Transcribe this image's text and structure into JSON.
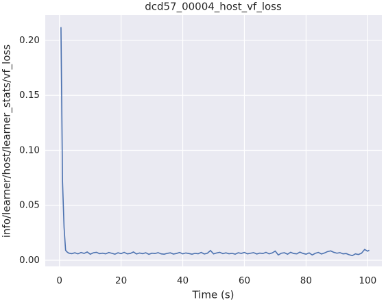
{
  "chart_data": {
    "type": "line",
    "title": "dcd57_00004_host_vf_loss",
    "x_label": "Time (s)",
    "y_label": "info/learner/host/learner_stats/vf_loss",
    "x": [
      0.5,
      1,
      1.5,
      2,
      2.5,
      3,
      4,
      5,
      6,
      7,
      8,
      9,
      10,
      11,
      12,
      13,
      14,
      15,
      16,
      17,
      18,
      19,
      20,
      21,
      22,
      23,
      24,
      25,
      26,
      27,
      28,
      29,
      30,
      31,
      32,
      33,
      34,
      35,
      36,
      37,
      38,
      39,
      40,
      41,
      42,
      43,
      44,
      45,
      46,
      47,
      48,
      49,
      50,
      51,
      52,
      53,
      54,
      55,
      56,
      57,
      58,
      59,
      60,
      61,
      62,
      63,
      64,
      65,
      66,
      67,
      68,
      69,
      70,
      71,
      72,
      73,
      74,
      75,
      76,
      77,
      78,
      79,
      80,
      81,
      82,
      83,
      84,
      85,
      86,
      87,
      88,
      89,
      90,
      91,
      92,
      93,
      94,
      95,
      96,
      97,
      98,
      99,
      100,
      100.5
    ],
    "series": [
      {
        "name": "vf_loss",
        "color": "#4c72b0",
        "values": [
          0.212,
          0.072,
          0.03,
          0.009,
          0.0075,
          0.0065,
          0.006,
          0.0068,
          0.0058,
          0.007,
          0.0062,
          0.0075,
          0.0055,
          0.0068,
          0.0072,
          0.006,
          0.0064,
          0.0058,
          0.007,
          0.0063,
          0.0055,
          0.0068,
          0.006,
          0.0072,
          0.0058,
          0.0062,
          0.0075,
          0.0057,
          0.0066,
          0.006,
          0.0068,
          0.0054,
          0.0064,
          0.0061,
          0.0069,
          0.0058,
          0.0055,
          0.0063,
          0.0067,
          0.0056,
          0.0062,
          0.007,
          0.0058,
          0.0066,
          0.0061,
          0.0055,
          0.0063,
          0.0059,
          0.0071,
          0.0057,
          0.0064,
          0.0088,
          0.0058,
          0.0066,
          0.0072,
          0.006,
          0.0067,
          0.0059,
          0.0063,
          0.0055,
          0.0068,
          0.0062,
          0.0071,
          0.0058,
          0.0064,
          0.0069,
          0.0057,
          0.0065,
          0.0061,
          0.0072,
          0.0058,
          0.0066,
          0.0083,
          0.0048,
          0.0064,
          0.0068,
          0.0055,
          0.0072,
          0.0061,
          0.0058,
          0.0074,
          0.0062,
          0.0055,
          0.0067,
          0.0048,
          0.0063,
          0.0071,
          0.0057,
          0.0066,
          0.0079,
          0.0085,
          0.0072,
          0.0064,
          0.0069,
          0.0058,
          0.0061,
          0.005,
          0.0042,
          0.0058,
          0.0052,
          0.0064,
          0.0098,
          0.0082,
          0.0092
        ]
      }
    ],
    "xlim": [
      -4.6,
      104.6
    ],
    "ylim": [
      -0.0056,
      0.223
    ],
    "xticks": [
      0,
      20,
      40,
      60,
      80,
      100
    ],
    "yticks": [
      {
        "value": 0,
        "label": "0.00"
      },
      {
        "value": 0.05,
        "label": "0.05"
      },
      {
        "value": 0.1,
        "label": "0.10"
      },
      {
        "value": 0.15,
        "label": "0.15"
      },
      {
        "value": 0.2,
        "label": "0.20"
      }
    ],
    "grid": true
  }
}
